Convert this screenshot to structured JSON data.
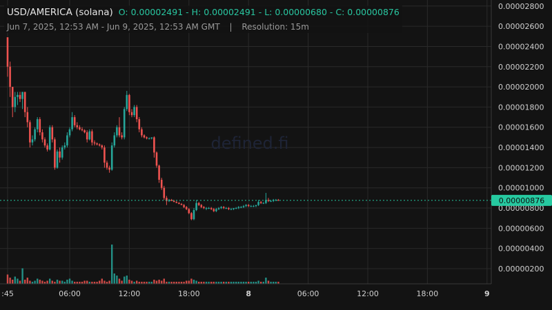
{
  "legend": {
    "title": "USD/AMERICA (solana)",
    "ohlc": "O: 0.00002491 - H: 0.00002491 - L: 0.00000680 - C: 0.00000876",
    "range": "Jun 7, 2025, 12:53 AM - Jun 9, 2025, 12:53 AM GMT",
    "separator": "|",
    "resolution": "Resolution: 15m"
  },
  "watermark": "defined.fi",
  "current_price_label": "0.00000876",
  "colors": {
    "up": "#26a69a",
    "down": "#ef5350",
    "background": "#131313",
    "grid": "#2a2a2a",
    "badge": "#26c9a0"
  },
  "chart_data": {
    "type": "candlestick",
    "y_ticks": [
      "0.00000200",
      "0.00000400",
      "0.00000600",
      "0.00000800",
      "0.00001000",
      "0.00001200",
      "0.00001400",
      "0.00001600",
      "0.00001800",
      "0.00002000",
      "0.00002200",
      "0.00002400",
      "0.00002600",
      "0.00002800"
    ],
    "y_tick_values": [
      2e-06,
      4e-06,
      6e-06,
      8e-06,
      1e-05,
      1.2e-05,
      1.4e-05,
      1.6e-05,
      1.8e-05,
      2e-05,
      2.2e-05,
      2.4e-05,
      2.6e-05,
      2.8e-05
    ],
    "ylim": [
      5e-07,
      2.86e-05
    ],
    "x_ticks": [
      {
        "label": ":45",
        "bold": false,
        "index": 0
      },
      {
        "label": "06:00",
        "bold": false,
        "index": 25
      },
      {
        "label": "12:00",
        "bold": false,
        "index": 49
      },
      {
        "label": "18:00",
        "bold": false,
        "index": 73
      },
      {
        "label": "8",
        "bold": true,
        "index": 97
      },
      {
        "label": "06:00",
        "bold": false,
        "index": 121
      },
      {
        "label": "12:00",
        "bold": false,
        "index": 145
      },
      {
        "label": "18:00",
        "bold": false,
        "index": 169
      },
      {
        "label": "9",
        "bold": true,
        "index": 193
      }
    ],
    "current_price": 8.76e-06,
    "ohlc": [
      [
        2.491,
        2.491,
        2.1,
        2.2
      ],
      [
        2.2,
        2.25,
        1.9,
        2.0
      ],
      [
        2.0,
        2.0,
        1.7,
        1.8
      ],
      [
        1.8,
        1.95,
        1.75,
        1.9
      ],
      [
        1.9,
        1.95,
        1.82,
        1.92
      ],
      [
        1.92,
        1.95,
        1.85,
        1.88
      ],
      [
        1.88,
        1.95,
        1.78,
        1.95
      ],
      [
        1.95,
        1.95,
        1.7,
        1.75
      ],
      [
        1.75,
        1.8,
        1.6,
        1.65
      ],
      [
        1.65,
        1.67,
        1.4,
        1.45
      ],
      [
        1.45,
        1.52,
        1.42,
        1.48
      ],
      [
        1.48,
        1.6,
        1.46,
        1.58
      ],
      [
        1.58,
        1.7,
        1.55,
        1.68
      ],
      [
        1.68,
        1.7,
        1.52,
        1.55
      ],
      [
        1.55,
        1.58,
        1.45,
        1.48
      ],
      [
        1.48,
        1.5,
        1.4,
        1.42
      ],
      [
        1.42,
        1.44,
        1.36,
        1.38
      ],
      [
        1.38,
        1.62,
        1.37,
        1.6
      ],
      [
        1.6,
        1.62,
        1.45,
        1.48
      ],
      [
        1.48,
        1.5,
        1.18,
        1.2
      ],
      [
        1.2,
        1.38,
        1.19,
        1.36
      ],
      [
        1.36,
        1.4,
        1.25,
        1.3
      ],
      [
        1.3,
        1.42,
        1.28,
        1.4
      ],
      [
        1.4,
        1.45,
        1.38,
        1.42
      ],
      [
        1.42,
        1.55,
        1.4,
        1.52
      ],
      [
        1.52,
        1.6,
        1.5,
        1.58
      ],
      [
        1.58,
        1.75,
        1.56,
        1.7
      ],
      [
        1.7,
        1.72,
        1.6,
        1.62
      ],
      [
        1.62,
        1.65,
        1.58,
        1.6
      ],
      [
        1.6,
        1.62,
        1.57,
        1.58
      ],
      [
        1.58,
        1.6,
        1.56,
        1.57
      ],
      [
        1.57,
        1.58,
        1.54,
        1.55
      ],
      [
        1.55,
        1.57,
        1.45,
        1.48
      ],
      [
        1.48,
        1.58,
        1.47,
        1.56
      ],
      [
        1.56,
        1.58,
        1.42,
        1.45
      ],
      [
        1.45,
        1.47,
        1.42,
        1.44
      ],
      [
        1.44,
        1.45,
        1.42,
        1.43
      ],
      [
        1.43,
        1.44,
        1.41,
        1.42
      ],
      [
        1.42,
        1.43,
        1.38,
        1.4
      ],
      [
        1.4,
        1.42,
        1.2,
        1.25
      ],
      [
        1.25,
        1.27,
        1.18,
        1.2
      ],
      [
        1.2,
        1.22,
        1.15,
        1.18
      ],
      [
        1.18,
        1.45,
        1.17,
        1.42
      ],
      [
        1.42,
        1.55,
        1.4,
        1.52
      ],
      [
        1.52,
        1.62,
        1.5,
        1.6
      ],
      [
        1.6,
        1.7,
        1.5,
        1.52
      ],
      [
        1.52,
        1.55,
        1.48,
        1.5
      ],
      [
        1.5,
        1.8,
        1.48,
        1.78
      ],
      [
        1.78,
        1.96,
        1.76,
        1.92
      ],
      [
        1.92,
        1.93,
        1.72,
        1.75
      ],
      [
        1.75,
        1.78,
        1.7,
        1.72
      ],
      [
        1.72,
        1.82,
        1.7,
        1.8
      ],
      [
        1.8,
        1.82,
        1.65,
        1.68
      ],
      [
        1.68,
        1.7,
        1.55,
        1.58
      ],
      [
        1.58,
        1.6,
        1.5,
        1.52
      ],
      [
        1.52,
        1.53,
        1.49,
        1.5
      ],
      [
        1.5,
        1.51,
        1.48,
        1.49
      ],
      [
        1.49,
        1.5,
        1.48,
        1.49
      ],
      [
        1.49,
        1.5,
        1.48,
        1.5
      ],
      [
        1.5,
        1.51,
        1.3,
        1.35
      ],
      [
        1.35,
        1.36,
        1.2,
        1.22
      ],
      [
        1.22,
        1.23,
        1.05,
        1.08
      ],
      [
        1.08,
        1.1,
        0.98,
        1.0
      ],
      [
        1.0,
        1.02,
        0.88,
        0.9
      ],
      [
        0.9,
        0.92,
        0.83,
        0.87
      ],
      [
        0.87,
        0.89,
        0.86,
        0.88
      ],
      [
        0.88,
        0.89,
        0.87,
        0.87
      ],
      [
        0.87,
        0.88,
        0.86,
        0.86
      ],
      [
        0.86,
        0.87,
        0.85,
        0.85
      ],
      [
        0.85,
        0.86,
        0.84,
        0.84
      ],
      [
        0.84,
        0.85,
        0.83,
        0.83
      ],
      [
        0.83,
        0.84,
        0.8,
        0.81
      ],
      [
        0.81,
        0.82,
        0.78,
        0.79
      ],
      [
        0.79,
        0.8,
        0.74,
        0.75
      ],
      [
        0.75,
        0.76,
        0.68,
        0.69
      ],
      [
        0.69,
        0.8,
        0.68,
        0.78
      ],
      [
        0.78,
        0.88,
        0.77,
        0.85
      ],
      [
        0.85,
        0.86,
        0.82,
        0.83
      ],
      [
        0.83,
        0.84,
        0.8,
        0.81
      ],
      [
        0.81,
        0.82,
        0.79,
        0.8
      ],
      [
        0.8,
        0.81,
        0.78,
        0.8
      ],
      [
        0.8,
        0.81,
        0.79,
        0.8
      ],
      [
        0.8,
        0.81,
        0.78,
        0.79
      ],
      [
        0.79,
        0.8,
        0.76,
        0.77
      ],
      [
        0.77,
        0.8,
        0.76,
        0.79
      ],
      [
        0.79,
        0.81,
        0.78,
        0.8
      ],
      [
        0.8,
        0.82,
        0.79,
        0.81
      ],
      [
        0.81,
        0.82,
        0.79,
        0.8
      ],
      [
        0.8,
        0.81,
        0.79,
        0.8
      ],
      [
        0.8,
        0.81,
        0.78,
        0.79
      ],
      [
        0.79,
        0.8,
        0.78,
        0.79
      ],
      [
        0.79,
        0.8,
        0.78,
        0.8
      ],
      [
        0.8,
        0.81,
        0.79,
        0.8
      ],
      [
        0.8,
        0.82,
        0.79,
        0.81
      ],
      [
        0.81,
        0.82,
        0.8,
        0.81
      ],
      [
        0.81,
        0.83,
        0.8,
        0.82
      ],
      [
        0.82,
        0.84,
        0.81,
        0.83
      ],
      [
        0.83,
        0.84,
        0.81,
        0.82
      ],
      [
        0.82,
        0.83,
        0.81,
        0.82
      ],
      [
        0.82,
        0.83,
        0.81,
        0.82
      ],
      [
        0.82,
        0.83,
        0.81,
        0.83
      ],
      [
        0.83,
        0.88,
        0.82,
        0.86
      ],
      [
        0.86,
        0.87,
        0.84,
        0.85
      ],
      [
        0.85,
        0.86,
        0.84,
        0.85
      ],
      [
        0.85,
        0.95,
        0.84,
        0.88
      ],
      [
        0.88,
        0.9,
        0.86,
        0.87
      ],
      [
        0.87,
        0.88,
        0.86,
        0.87
      ],
      [
        0.87,
        0.89,
        0.86,
        0.88
      ],
      [
        0.88,
        0.89,
        0.87,
        0.88
      ],
      [
        0.88,
        0.89,
        0.87,
        0.876
      ]
    ]
  },
  "volume": [
    0.9,
    0.6,
    0.4,
    0.7,
    0.5,
    0.3,
    1.5,
    0.4,
    0.6,
    0.3,
    0.2,
    0.3,
    0.5,
    0.4,
    0.3,
    0.2,
    0.3,
    0.5,
    0.3,
    0.2,
    0.4,
    0.3,
    0.3,
    0.2,
    0.4,
    0.5,
    0.3,
    0.2,
    0.2,
    0.2,
    0.2,
    0.3,
    0.3,
    0.2,
    0.2,
    0.2,
    0.2,
    0.3,
    0.5,
    0.3,
    0.2,
    0.3,
    3.8,
    1.0,
    0.8,
    0.5,
    0.3,
    0.7,
    0.8,
    0.4,
    0.3,
    0.2,
    0.3,
    0.2,
    0.2,
    0.2,
    0.2,
    0.2,
    0.2,
    0.4,
    0.3,
    0.4,
    0.3,
    0.5,
    0.2,
    0.2,
    0.2,
    0.2,
    0.2,
    0.2,
    0.2,
    0.2,
    0.3,
    0.3,
    0.5,
    0.4,
    0.3,
    0.2,
    0.2,
    0.2,
    0.2,
    0.2,
    0.2,
    0.2,
    0.2,
    0.2,
    0.2,
    0.2,
    0.2,
    0.2,
    0.2,
    0.2,
    0.2,
    0.2,
    0.2,
    0.2,
    0.2,
    0.2,
    0.2,
    0.2,
    0.2,
    0.3,
    0.2,
    0.2,
    0.6,
    0.3,
    0.2,
    0.2,
    0.2,
    0.2
  ]
}
